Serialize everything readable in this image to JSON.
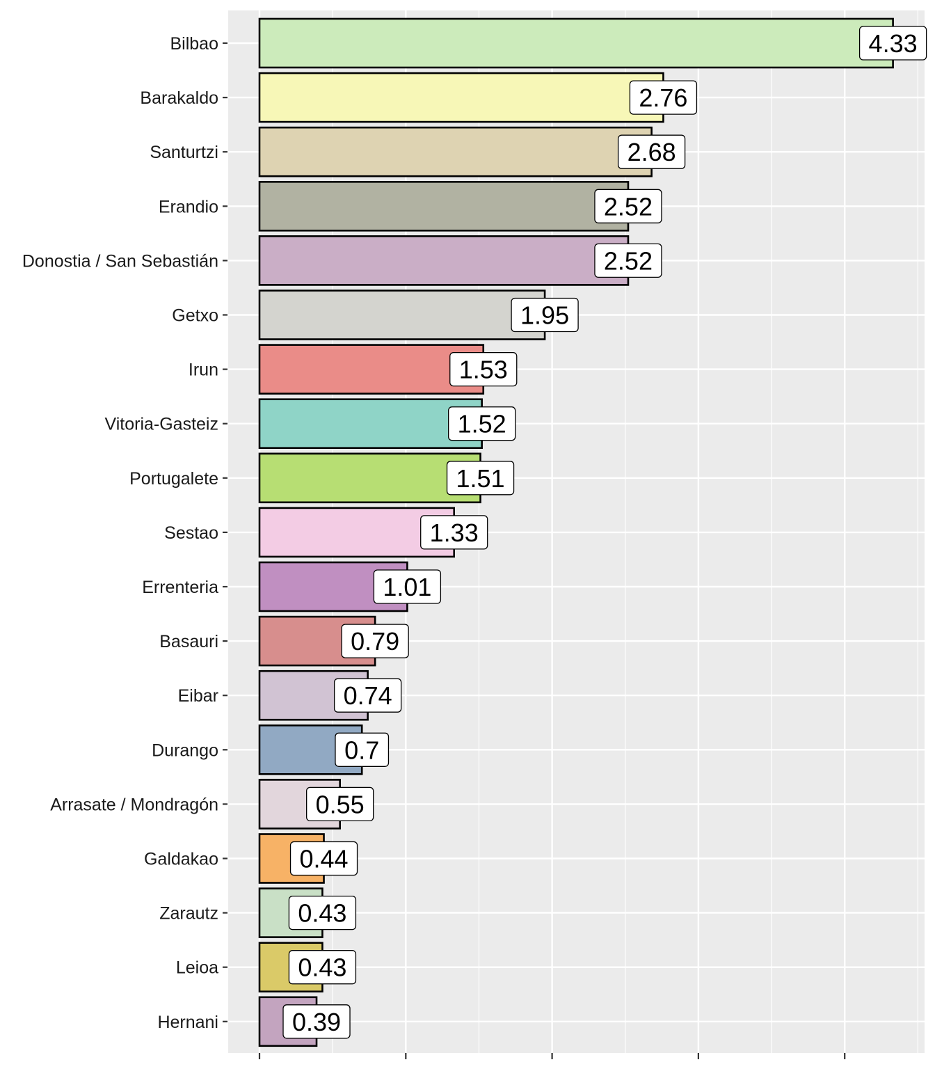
{
  "chart_data": {
    "type": "bar",
    "orientation": "horizontal",
    "title": "",
    "xlabel": "",
    "ylabel": "",
    "xlim": [
      0,
      4.55
    ],
    "x_ticks": [
      0,
      1,
      2,
      3,
      4
    ],
    "x_tick_labels_visible": false,
    "grid": true,
    "legend": "none",
    "panel_background": "#EBEBEB",
    "categories": [
      "Bilbao",
      "Barakaldo",
      "Santurtzi",
      "Erandio",
      "Donostia / San Sebastián",
      "Getxo",
      "Irun",
      "Vitoria-Gasteiz",
      "Portugalete",
      "Sestao",
      "Errenteria",
      "Basauri",
      "Eibar",
      "Durango",
      "Arrasate / Mondragón",
      "Galdakao",
      "Zarautz",
      "Leioa",
      "Hernani"
    ],
    "values": [
      4.33,
      2.76,
      2.68,
      2.52,
      2.52,
      1.95,
      1.53,
      1.52,
      1.51,
      1.33,
      1.01,
      0.79,
      0.74,
      0.7,
      0.55,
      0.44,
      0.43,
      0.43,
      0.39
    ],
    "value_labels": [
      "4.33",
      "2.76",
      "2.68",
      "2.52",
      "2.52",
      "1.95",
      "1.53",
      "1.52",
      "1.51",
      "1.33",
      "1.01",
      "0.79",
      "0.74",
      "0.7",
      "0.55",
      "0.44",
      "0.43",
      "0.43",
      "0.39"
    ],
    "colors": [
      "#CCEBBB",
      "#F7F7B7",
      "#DED3B2",
      "#B1B2A2",
      "#CAAEC6",
      "#D4D4CF",
      "#EA8C88",
      "#8FD4C7",
      "#B7DE73",
      "#F3CCE4",
      "#C08FC1",
      "#D78E8D",
      "#D1C3D3",
      "#91A9C3",
      "#E2D6DC",
      "#F7B266",
      "#C9E0C6",
      "#DACA68",
      "#C3A4BF"
    ]
  }
}
